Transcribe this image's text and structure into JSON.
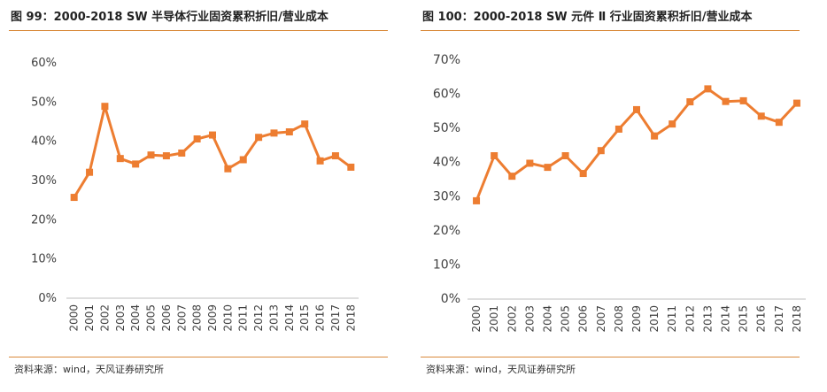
{
  "accent_color": "#ed7d31",
  "rule_color": "#d9893a",
  "charts": [
    {
      "title": "图 99：2000-2018 SW 半导体行业固资累积折旧/营业成本",
      "source": "资料来源：wind，天风证券研究所",
      "chart_data": {
        "type": "line",
        "title": "图 99：2000-2018 SW 半导体行业固资累积折旧/营业成本",
        "categories": [
          "2000",
          "2001",
          "2002",
          "2003",
          "2004",
          "2005",
          "2006",
          "2007",
          "2008",
          "2009",
          "2010",
          "2011",
          "2012",
          "2013",
          "2014",
          "2015",
          "2016",
          "2017",
          "2018"
        ],
        "series": [
          {
            "values": [
              25.7,
              32.1,
              48.9,
              35.6,
              34.2,
              36.5,
              36.3,
              37.0,
              40.6,
              41.6,
              33.0,
              35.3,
              41.0,
              42.1,
              42.4,
              44.4,
              35.0,
              36.3,
              33.4
            ]
          }
        ],
        "ylim": [
          0,
          60
        ],
        "yticks": [
          "0%",
          "10%",
          "20%",
          "30%",
          "40%",
          "50%",
          "60%"
        ],
        "ytick_values": [
          0,
          10,
          20,
          30,
          40,
          50,
          60
        ],
        "grid": false,
        "marker": "square",
        "color": "#ed7d31"
      }
    },
    {
      "title": "图 100：2000-2018 SW 元件 Ⅱ 行业固资累积折旧/营业成本",
      "source": "资料来源：wind，天风证券研究所",
      "chart_data": {
        "type": "line",
        "title": "图 100：2000-2018 SW 元件 Ⅱ 行业固资累积折旧/营业成本",
        "categories": [
          "2000",
          "2001",
          "2002",
          "2003",
          "2004",
          "2005",
          "2006",
          "2007",
          "2008",
          "2009",
          "2010",
          "2011",
          "2012",
          "2013",
          "2014",
          "2015",
          "2016",
          "2017",
          "2018"
        ],
        "series": [
          {
            "values": [
              28.8,
              42.0,
              36.0,
              39.8,
              38.6,
              42.0,
              36.8,
              43.5,
              49.8,
              55.5,
              47.8,
              51.3,
              57.8,
              61.6,
              57.9,
              58.1,
              53.6,
              51.8,
              57.4
            ]
          }
        ],
        "ylim": [
          0,
          70
        ],
        "yticks": [
          "0%",
          "10%",
          "20%",
          "30%",
          "40%",
          "50%",
          "60%",
          "70%"
        ],
        "ytick_values": [
          0,
          10,
          20,
          30,
          40,
          50,
          60,
          70
        ],
        "grid": false,
        "marker": "square",
        "color": "#ed7d31"
      }
    }
  ]
}
